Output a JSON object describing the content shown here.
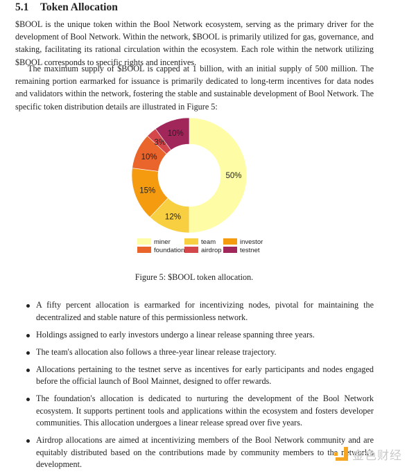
{
  "section": {
    "number": "5.1",
    "title": "Token Allocation"
  },
  "paragraphs": [
    "$BOOL is the unique token within the Bool Network ecosystem, serving as the primary driver for the development of Bool Network. Within the network, $BOOL is primarily utilized for gas, governance, and staking, facilitating its rational circulation within the ecosystem. Each role within the network utilizing $BOOL corresponds to specific rights and incentives.",
    "The maximum supply of $BOOL is capped at 1 billion, with an initial supply of 500 million. The remaining portion earmarked for issuance is primarily dedicated to long-term incentives for data nodes and validators within the network, fostering the stable and sustainable development of Bool Network. The specific token distribution details are illustrated in Figure 5:"
  ],
  "chart_data": {
    "type": "pie",
    "donut": true,
    "start": "top, clockwise",
    "categories": [
      "miner",
      "team",
      "investor",
      "foundation",
      "airdrop",
      "testnet"
    ],
    "values": [
      50,
      12,
      15,
      10,
      3,
      10
    ],
    "labels": [
      "50%",
      "12%",
      "15%",
      "10%",
      "3%",
      "10%"
    ],
    "colors": [
      "#FEFDA6",
      "#F8CF41",
      "#F59B10",
      "#E9652B",
      "#D4474A",
      "#A1275B"
    ],
    "legend_position": "bottom"
  },
  "caption": "Figure 5: $BOOL token allocation.",
  "bullets": [
    "A fifty percent allocation is earmarked for incentivizing nodes, pivotal for maintaining the decentralized and stable nature of this permissionless network.",
    "Holdings assigned to early investors undergo a linear release spanning three years.",
    "The team's allocation also follows a three-year linear release trajectory.",
    "Allocations pertaining to the testnet serve as incentives for early participants and nodes engaged before the official launch of Bool Mainnet, designed to offer rewards.",
    "The foundation's allocation is dedicated to nurturing the development of the Bool Network ecosystem. It supports pertinent tools and applications within the ecosystem and fosters developer communities. This allocation undergoes a linear release spread over five years.",
    "Airdrop allocations are aimed at incentivizing members of the Bool Network community and are equitably distributed based on the contributions made by community members to the network's development."
  ],
  "watermark": {
    "text": "金色财经",
    "color": "#F5A623"
  }
}
